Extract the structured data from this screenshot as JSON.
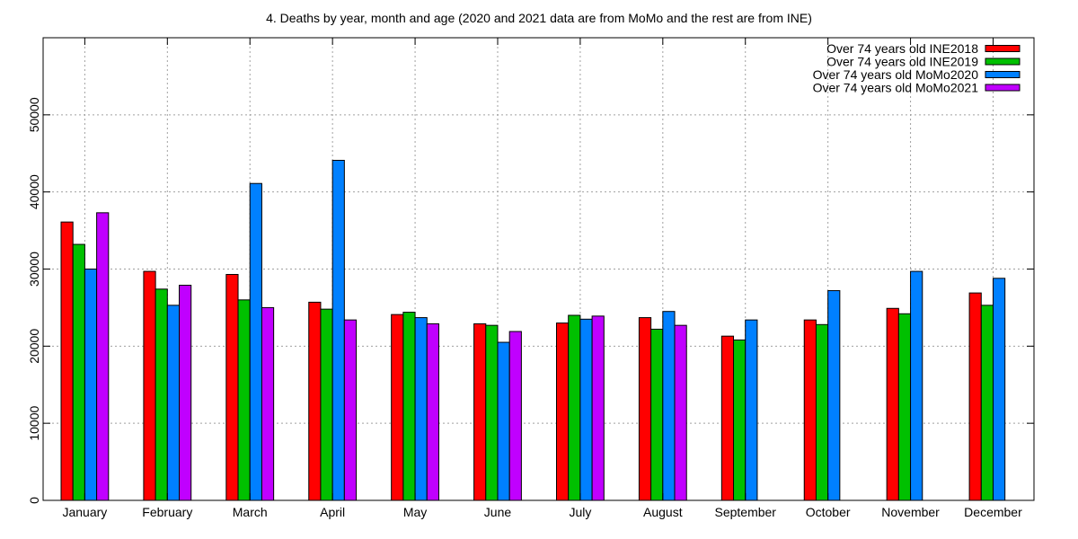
{
  "chart_data": {
    "type": "bar",
    "title": "4. Deaths by year, month and age (2020 and 2021 data are from MoMo and the rest are from INE)",
    "xlabel": "",
    "ylabel": "",
    "ylim": [
      0,
      60000
    ],
    "yticks": [
      0,
      10000,
      20000,
      30000,
      40000,
      50000
    ],
    "grid": true,
    "legend_position": "top-right",
    "categories": [
      "January",
      "February",
      "March",
      "April",
      "May",
      "June",
      "July",
      "August",
      "September",
      "October",
      "November",
      "December"
    ],
    "series": [
      {
        "name": "Over 74 years old INE2018",
        "color": "#ff0000",
        "values": [
          36100,
          29700,
          29300,
          25700,
          24100,
          22900,
          23000,
          23700,
          21300,
          23400,
          24900,
          26900
        ]
      },
      {
        "name": "Over 74 years old INE2019",
        "color": "#00c000",
        "values": [
          33200,
          27400,
          26000,
          24800,
          24400,
          22700,
          24000,
          22200,
          20800,
          22800,
          24200,
          25300
        ]
      },
      {
        "name": "Over 74 years old MoMo2020",
        "color": "#0080ff",
        "values": [
          30000,
          25300,
          41100,
          44100,
          23700,
          20500,
          23500,
          24500,
          23400,
          27200,
          29700,
          28800
        ]
      },
      {
        "name": "Over 74 years old MoMo2021",
        "color": "#c000ff",
        "values": [
          37300,
          27900,
          25000,
          23400,
          22900,
          21900,
          23900,
          22700,
          null,
          null,
          null,
          null
        ]
      }
    ]
  }
}
